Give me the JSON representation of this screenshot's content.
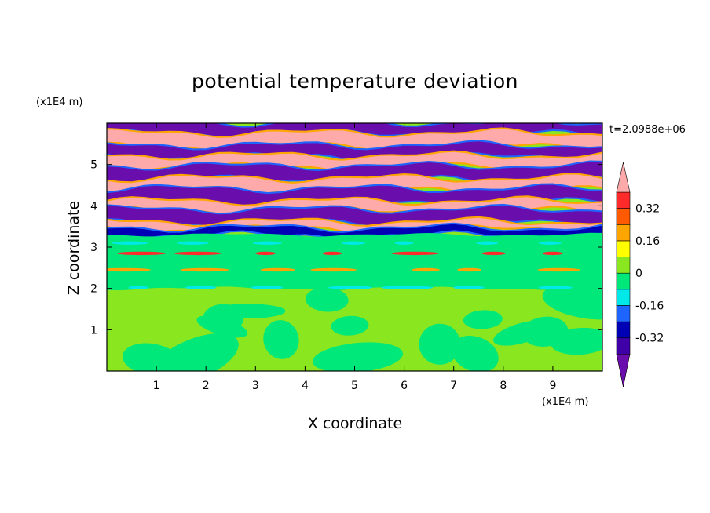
{
  "chart_data": {
    "type": "heatmap",
    "title": "potential temperature deviation",
    "xlabel": "X coordinate",
    "ylabel": "Z coordinate",
    "x_unit": "(x1E4 m)",
    "y_unit": "(x1E4 m)",
    "time_label": "t=2.0988e+06",
    "xlim": [
      0,
      10
    ],
    "ylim": [
      0,
      6
    ],
    "x_ticks": [
      "1",
      "2",
      "3",
      "4",
      "5",
      "6",
      "7",
      "8",
      "9"
    ],
    "y_ticks": [
      "1",
      "2",
      "3",
      "4",
      "5"
    ],
    "colorbar": {
      "levels": [
        -0.48,
        -0.4,
        -0.32,
        -0.24,
        -0.16,
        -0.08,
        0,
        0.08,
        0.16,
        0.24,
        0.32,
        0.4
      ],
      "colors": [
        "#6a0dad",
        "#3f00a8",
        "#0000b4",
        "#1e64ff",
        "#00e8e8",
        "#00e87a",
        "#8ae61e",
        "#ffff00",
        "#ffa500",
        "#ff5a00",
        "#ff2a2a",
        "#ffaaaa"
      ],
      "tick_labels": [
        "0.32",
        "0.16",
        "0",
        "-0.16",
        "-0.32"
      ],
      "tick_values": [
        0.32,
        0.16,
        0,
        -0.16,
        -0.32
      ]
    },
    "bands": [
      {
        "z": [
          5.75,
          6.0
        ],
        "class": "purple"
      },
      {
        "z": [
          5.45,
          5.75
        ],
        "class": "pink"
      },
      {
        "z": [
          5.2,
          5.45
        ],
        "class": "purple"
      },
      {
        "z": [
          4.95,
          5.2
        ],
        "class": "pink"
      },
      {
        "z": [
          4.65,
          4.95
        ],
        "class": "purple"
      },
      {
        "z": [
          4.4,
          4.65
        ],
        "class": "pink"
      },
      {
        "z": [
          4.1,
          4.4
        ],
        "class": "purple"
      },
      {
        "z": [
          3.9,
          4.1
        ],
        "class": "pink"
      },
      {
        "z": [
          3.6,
          3.9
        ],
        "class": "purple"
      },
      {
        "z": [
          3.45,
          3.6
        ],
        "class": "pink"
      },
      {
        "z": [
          3.3,
          3.45
        ],
        "class": "darkblue"
      },
      {
        "z": [
          2.0,
          3.3
        ],
        "class": "green"
      },
      {
        "z": [
          0.0,
          2.0
        ],
        "class": "mixed"
      }
    ]
  }
}
